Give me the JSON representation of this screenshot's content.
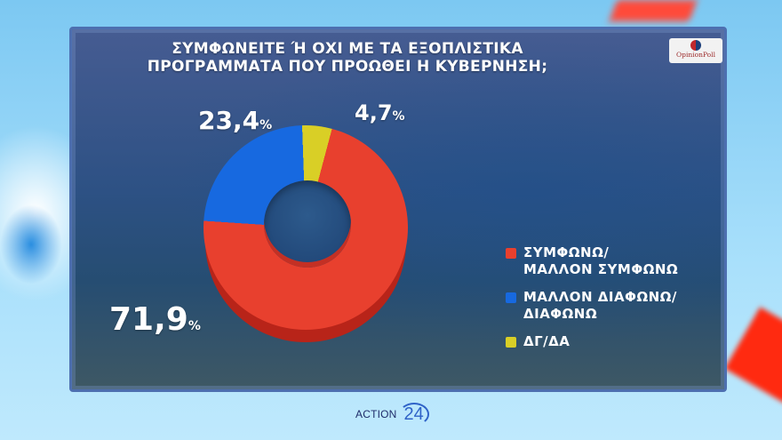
{
  "title": {
    "line1": "ΣΥΜΦΩΝΕΙΤΕ Ή ΟΧΙ ΜΕ ΤΑ ΕΞΟΠΛΙΣΤΙΚΑ",
    "line2": "ΠΡΟΓΡΑΜΜΑΤΑ ΠΟΥ ΠΡΟΩΘΕΙ Η ΚΥΒΕΡΝΗΣΗ;"
  },
  "logo": {
    "text": "OpinionPoll"
  },
  "labels": {
    "agree": "71,9",
    "disagree": "23,4",
    "dk": "4,7",
    "unit": "%"
  },
  "legend": [
    {
      "label_line1": "ΣΥΜΦΩΝΩ/",
      "label_line2": "ΜΑΛΛΟΝ ΣΥΜΦΩΝΩ",
      "color": "#e8402e"
    },
    {
      "label_line1": "ΜΑΛΛΟΝ ΔΙΑΦΩΝΩ/",
      "label_line2": "ΔΙΑΦΩΝΩ",
      "color": "#1769e0"
    },
    {
      "label_line1": "ΔΓ/ΔΑ",
      "label_line2": "",
      "color": "#d9cf26"
    }
  ],
  "footer": {
    "brand": "ACTION",
    "number": "24"
  },
  "chart_data": {
    "type": "pie",
    "subtype": "donut",
    "title": "ΣΥΜΦΩΝΕΙΤΕ Ή ΟΧΙ ΜΕ ΤΑ ΕΞΟΠΛΙΣΤΙΚΑ ΠΡΟΓΡΑΜΜΑΤΑ ΠΟΥ ΠΡΟΩΘΕΙ Η ΚΥΒΕΡΝΗΣΗ;",
    "categories": [
      "ΣΥΜΦΩΝΩ/ΜΑΛΛΟΝ ΣΥΜΦΩΝΩ",
      "ΜΑΛΛΟΝ ΔΙΑΦΩΝΩ/ΔΙΑΦΩΝΩ",
      "ΔΓ/ΔΑ"
    ],
    "values": [
      71.9,
      23.4,
      4.7
    ],
    "colors": [
      "#e8402e",
      "#1769e0",
      "#d9cf26"
    ],
    "unit": "%",
    "legend_position": "right"
  }
}
